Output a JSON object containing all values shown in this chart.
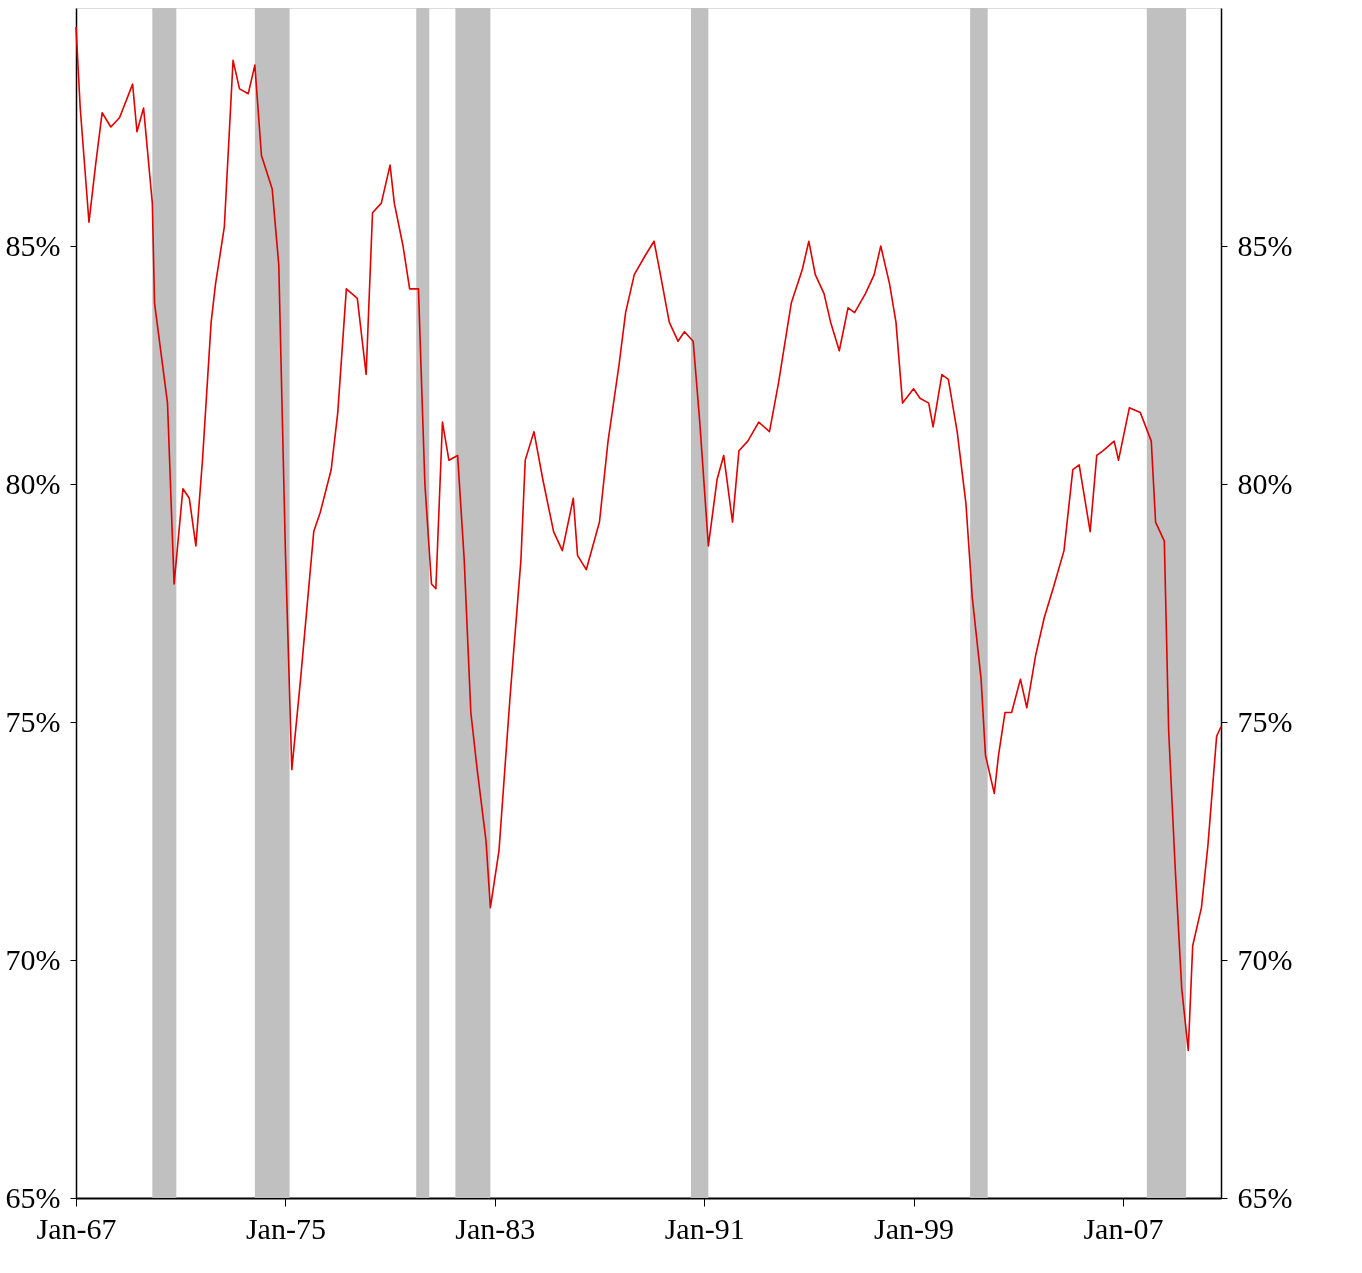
{
  "chart_data": {
    "type": "line",
    "x": [
      "1967-01",
      "1967-03",
      "1967-07",
      "1967-10",
      "1968-01",
      "1968-05",
      "1968-09",
      "1969-03",
      "1969-05",
      "1969-08",
      "1969-12",
      "1970-01",
      "1970-07",
      "1970-10",
      "1971-02",
      "1971-05",
      "1971-08",
      "1971-11",
      "1972-03",
      "1972-05",
      "1972-09",
      "1973-01",
      "1973-04",
      "1973-08",
      "1973-11",
      "1974-02",
      "1974-07",
      "1974-10",
      "1975-01",
      "1975-04",
      "1975-08",
      "1976-02",
      "1976-05",
      "1976-10",
      "1977-01",
      "1977-05",
      "1977-10",
      "1978-02",
      "1978-05",
      "1978-09",
      "1979-01",
      "1979-03",
      "1979-07",
      "1979-10",
      "1980-02",
      "1980-05",
      "1980-08",
      "1980-10",
      "1981-01",
      "1981-04",
      "1981-08",
      "1981-11",
      "1982-02",
      "1982-05",
      "1982-09",
      "1982-11",
      "1983-03",
      "1983-08",
      "1984-01",
      "1984-03",
      "1984-07",
      "1984-11",
      "1985-04",
      "1985-08",
      "1986-01",
      "1986-03",
      "1986-07",
      "1987-01",
      "1987-05",
      "1987-10",
      "1988-01",
      "1988-05",
      "1988-10",
      "1989-02",
      "1989-05",
      "1989-09",
      "1990-01",
      "1990-04",
      "1990-08",
      "1990-11",
      "1991-03",
      "1991-07",
      "1991-10",
      "1992-02",
      "1992-05",
      "1992-09",
      "1993-02",
      "1993-07",
      "1993-11",
      "1994-05",
      "1994-10",
      "1995-01",
      "1995-04",
      "1995-08",
      "1995-11",
      "1996-03",
      "1996-07",
      "1996-10",
      "1997-03",
      "1997-07",
      "1997-10",
      "1998-02",
      "1998-05",
      "1998-08",
      "1999-01",
      "1999-04",
      "1999-08",
      "1999-10",
      "2000-02",
      "2000-05",
      "2000-09",
      "2001-01",
      "2001-04",
      "2001-08",
      "2001-10",
      "2002-02",
      "2002-04",
      "2002-07",
      "2002-10",
      "2003-02",
      "2003-05",
      "2003-09",
      "2004-01",
      "2004-05",
      "2004-10",
      "2005-02",
      "2005-05",
      "2005-10",
      "2006-01",
      "2006-04",
      "2006-09",
      "2006-11",
      "2007-04",
      "2007-09",
      "2008-02",
      "2008-04",
      "2008-08",
      "2008-10",
      "2009-01",
      "2009-04",
      "2009-07",
      "2009-09",
      "2010-01",
      "2010-04",
      "2010-08",
      "2010-10"
    ],
    "series": [
      {
        "color": "#e00000",
        "values": [
          89.6,
          87.9,
          85.5,
          86.7,
          87.8,
          87.5,
          87.7,
          88.4,
          87.4,
          87.9,
          85.9,
          83.8,
          81.7,
          77.9,
          79.9,
          79.7,
          78.7,
          80.5,
          83.4,
          84.2,
          85.4,
          88.9,
          88.3,
          88.2,
          88.8,
          86.9,
          86.2,
          84.6,
          78.6,
          74.0,
          75.9,
          79.0,
          79.4,
          80.3,
          81.5,
          84.1,
          83.9,
          82.3,
          85.7,
          85.9,
          86.7,
          85.9,
          85.0,
          84.1,
          84.1,
          80.0,
          77.9,
          77.8,
          81.3,
          80.5,
          80.6,
          78.4,
          75.2,
          74.0,
          72.5,
          71.1,
          72.3,
          75.5,
          78.4,
          80.5,
          81.1,
          80.1,
          79.0,
          78.6,
          79.7,
          78.5,
          78.2,
          79.2,
          80.9,
          82.5,
          83.6,
          84.4,
          84.8,
          85.1,
          84.4,
          83.4,
          83.0,
          83.2,
          83.0,
          81.3,
          78.7,
          80.1,
          80.6,
          79.2,
          80.7,
          80.9,
          81.3,
          81.1,
          82.1,
          83.8,
          84.5,
          85.1,
          84.4,
          84.0,
          83.4,
          82.8,
          83.7,
          83.6,
          84.0,
          84.4,
          85.0,
          84.2,
          83.4,
          81.7,
          82.0,
          81.8,
          81.7,
          81.2,
          82.3,
          82.2,
          81.1,
          79.6,
          77.6,
          75.9,
          74.3,
          73.5,
          74.3,
          75.2,
          75.2,
          75.9,
          75.3,
          76.4,
          77.2,
          77.8,
          78.6,
          80.3,
          80.4,
          79.0,
          80.6,
          80.7,
          80.9,
          80.5,
          81.6,
          81.5,
          80.9,
          79.2,
          78.8,
          74.8,
          71.9,
          69.4,
          68.1,
          70.3,
          71.1,
          72.4,
          74.7,
          74.9
        ]
      }
    ],
    "xlim": [
      "1967-01",
      "2010-10"
    ],
    "xticks": [
      {
        "value": "1967-01",
        "label": "Jan-67"
      },
      {
        "value": "1975-01",
        "label": "Jan-75"
      },
      {
        "value": "1983-01",
        "label": "Jan-83"
      },
      {
        "value": "1991-01",
        "label": "Jan-91"
      },
      {
        "value": "1999-01",
        "label": "Jan-99"
      },
      {
        "value": "2007-01",
        "label": "Jan-07"
      }
    ],
    "ylim": [
      65,
      90
    ],
    "yticks": [
      {
        "value": 65,
        "label": "65%"
      },
      {
        "value": 70,
        "label": "70%"
      },
      {
        "value": 75,
        "label": "75%"
      },
      {
        "value": 80,
        "label": "80%"
      },
      {
        "value": 85,
        "label": "85%"
      }
    ],
    "y2lim": [
      65,
      90
    ],
    "y2ticks": [
      {
        "value": 65,
        "label": "65%"
      },
      {
        "value": 70,
        "label": "70%"
      },
      {
        "value": 75,
        "label": "75%"
      },
      {
        "value": 80,
        "label": "80%"
      },
      {
        "value": 85,
        "label": "85%"
      }
    ],
    "bands": [
      {
        "axis": "x",
        "from": "1969-12",
        "to": "1970-11",
        "color": "#c0c0c0"
      },
      {
        "axis": "x",
        "from": "1973-11",
        "to": "1975-03",
        "color": "#c0c0c0"
      },
      {
        "axis": "x",
        "from": "1980-01",
        "to": "1980-07",
        "color": "#c0c0c0"
      },
      {
        "axis": "x",
        "from": "1981-07",
        "to": "1982-11",
        "color": "#c0c0c0"
      },
      {
        "axis": "x",
        "from": "1990-07",
        "to": "1991-03",
        "color": "#c0c0c0"
      },
      {
        "axis": "x",
        "from": "2001-03",
        "to": "2001-11",
        "color": "#c0c0c0"
      },
      {
        "axis": "x",
        "from": "2007-12",
        "to": "2009-06",
        "color": "#c0c0c0"
      }
    ],
    "grid": false,
    "marker": "none",
    "line_style": "solid"
  }
}
